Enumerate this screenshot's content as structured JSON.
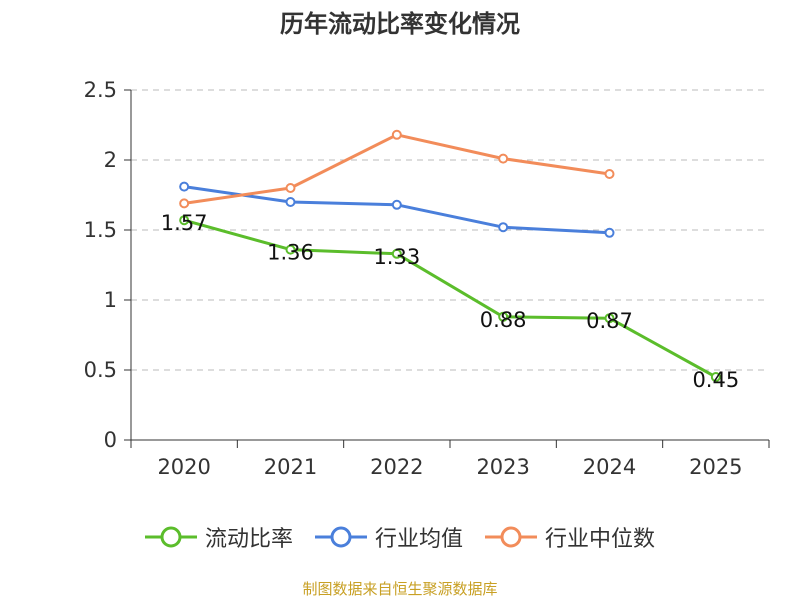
{
  "title": "历年流动比率变化情况",
  "source_text": "制图数据来自恒生聚源数据库",
  "colors": {
    "current_ratio": "#5bbd2b",
    "industry_mean": "#4a7fdb",
    "industry_median": "#f28c5a",
    "axis": "#333333",
    "grid": "#bbbbbb",
    "source": "#c8a024"
  },
  "legend": [
    {
      "label": "流动比率",
      "color": "#5bbd2b"
    },
    {
      "label": "行业均值",
      "color": "#4a7fdb"
    },
    {
      "label": "行业中位数",
      "color": "#f28c5a"
    }
  ],
  "chart_data": {
    "type": "line",
    "title": "历年流动比率变化情况",
    "categories": [
      "2020",
      "2021",
      "2022",
      "2023",
      "2024",
      "2025"
    ],
    "y_ticks": [
      "0",
      "0.5",
      "1",
      "1.5",
      "2",
      "2.5"
    ],
    "ylim": [
      0,
      2.5
    ],
    "grid": true,
    "legend_position": "bottom",
    "series": [
      {
        "name": "流动比率",
        "values": [
          1.57,
          1.36,
          1.33,
          0.88,
          0.87,
          0.45
        ],
        "labels": [
          "1.57",
          "1.36",
          "1.33",
          "0.88",
          "0.87",
          "0.45"
        ],
        "color": "#5bbd2b"
      },
      {
        "name": "行业均值",
        "values": [
          1.81,
          1.7,
          1.68,
          1.52,
          1.48,
          null
        ],
        "color": "#4a7fdb"
      },
      {
        "name": "行业中位数",
        "values": [
          1.69,
          1.8,
          2.18,
          2.01,
          1.9,
          null
        ],
        "color": "#f28c5a"
      }
    ]
  }
}
